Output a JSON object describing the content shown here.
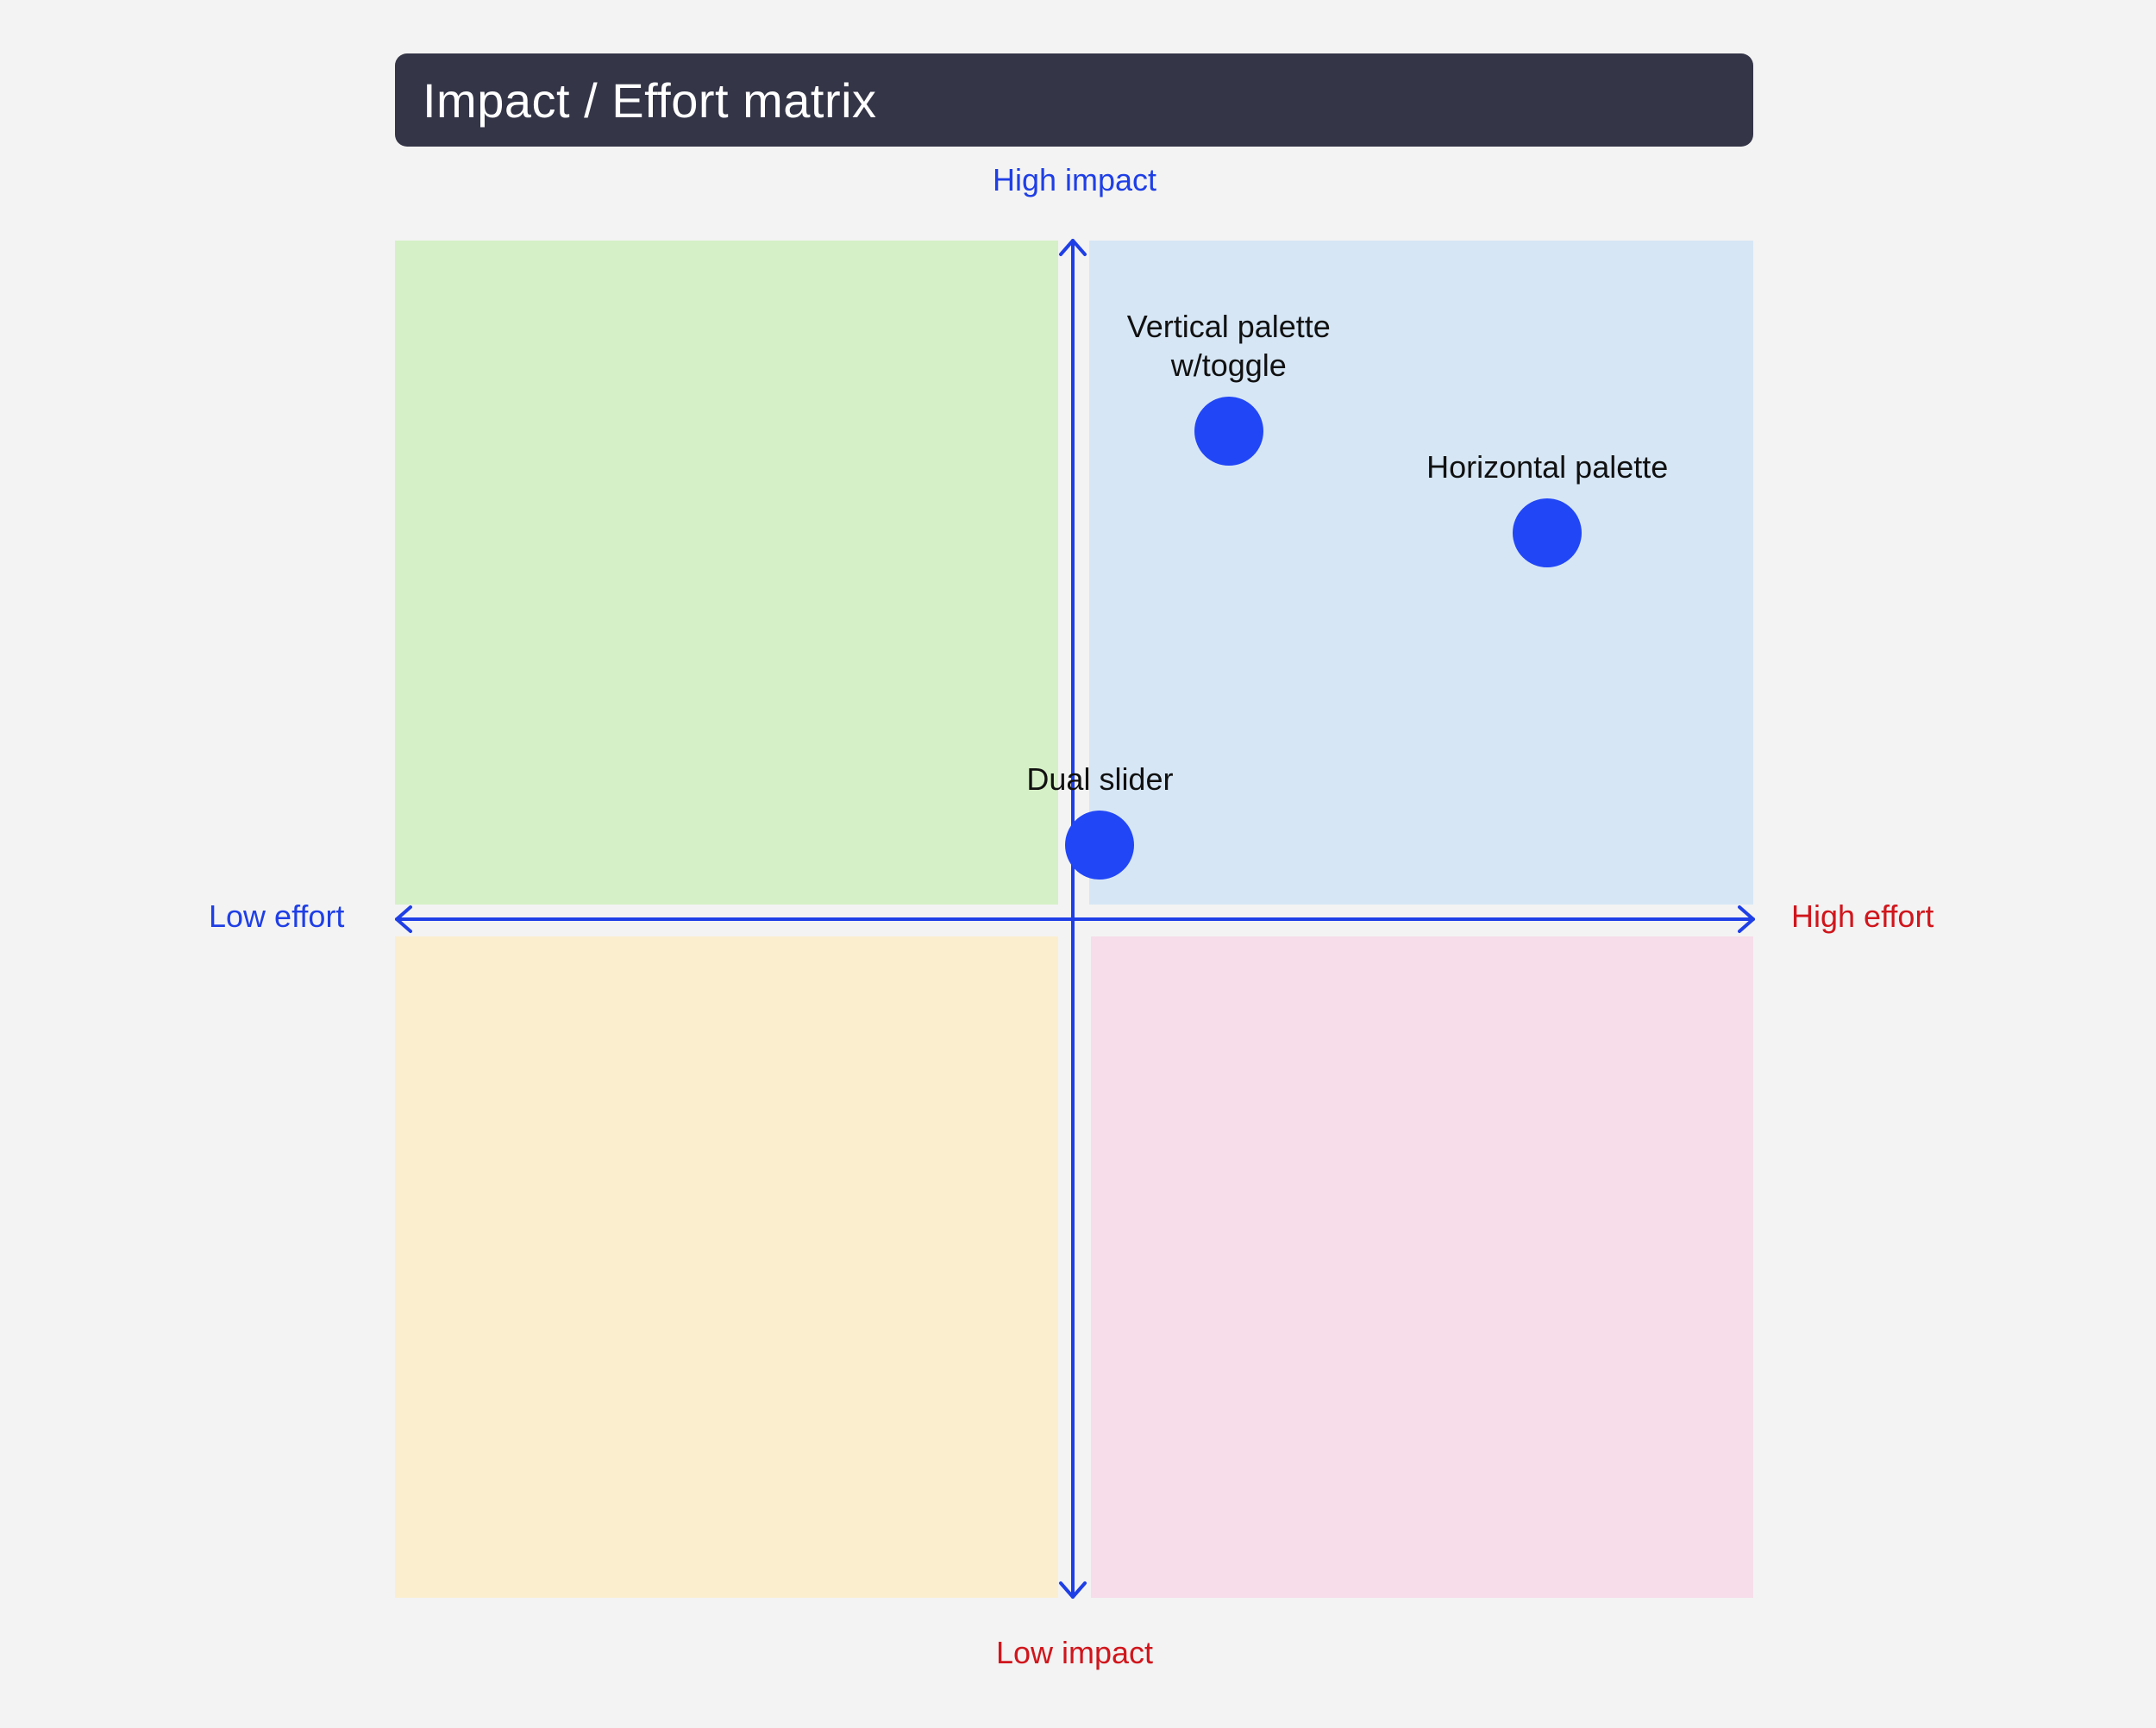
{
  "title": "Impact / Effort matrix",
  "axes": {
    "top_label": "High impact",
    "bottom_label": "Low impact",
    "left_label": "Low effort",
    "right_label": "High effort",
    "axis_color": "#1f3fe6"
  },
  "colors": {
    "background": "#f3f3f3",
    "title_bar": "#343547",
    "title_text": "#ffffff",
    "quadrant_top_left": "#d5f0c6",
    "quadrant_top_right": "#d6e6f5",
    "quadrant_bottom_left": "#fbeecf",
    "quadrant_bottom_right": "#f6dde9",
    "low_label": "#1f3fe6",
    "high_label": "#d0161c",
    "item_dot": "#2146f6"
  },
  "items": [
    {
      "label": "Vertical palette\nw/toggle",
      "effort": 0.23,
      "impact": 0.72
    },
    {
      "label": "Horizontal palette",
      "effort": 0.7,
      "impact": 0.57
    },
    {
      "label": "Dual slider",
      "effort": 0.04,
      "impact": 0.11
    }
  ]
}
